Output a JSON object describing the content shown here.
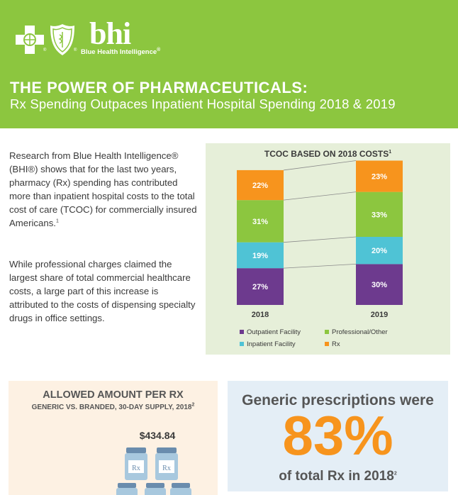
{
  "brand": {
    "logo_text": "bhi",
    "logo_subtitle": "Blue Health Intelligence",
    "registered": "®"
  },
  "header": {
    "title": "THE POWER OF PHARMACEUTICALS:",
    "subtitle": "Rx Spending Outpaces Inpatient Hospital Spending 2018 & 2019"
  },
  "intro": {
    "paragraph1": "Research from Blue Health Intelligence® (BHI®) shows that for the last two years, pharmacy (Rx) spending has contributed more than inpatient hospital costs to the total cost of care (TCOC) for commercially insured Americans.",
    "paragraph1_footnote": "1",
    "paragraph2": "While professional charges claimed the largest share of total commercial healthcare costs, a large part of this increase is attributed to the costs of dispensing specialty drugs in office settings."
  },
  "chart_data": {
    "type": "bar",
    "stacked": true,
    "title": "TCOC BASED ON 2018 COSTS",
    "title_footnote": "1",
    "categories": [
      "2018",
      "2019"
    ],
    "series": [
      {
        "name": "Outpatient Facility",
        "values": [
          27,
          30
        ],
        "labels": [
          "27%",
          "30%"
        ],
        "color": "#6d3a8e"
      },
      {
        "name": "Inpatient Facility",
        "values": [
          19,
          20
        ],
        "labels": [
          "19%",
          "20%"
        ],
        "color": "#4fc3d5"
      },
      {
        "name": "Professional/Other",
        "values": [
          31,
          33
        ],
        "labels": [
          "31%",
          "33%"
        ],
        "color": "#8cc63f"
      },
      {
        "name": "Rx",
        "values": [
          22,
          23
        ],
        "labels": [
          "22%",
          "23%"
        ],
        "color": "#f7941d"
      }
    ],
    "legend_order": [
      "Outpatient Facility",
      "Professional/Other",
      "Inpatient Facility",
      "Rx"
    ],
    "legend_position": "bottom"
  },
  "allowed": {
    "title": "ALLOWED AMOUNT PER RX",
    "subtitle": "GENERIC VS. BRANDED, 30-DAY SUPPLY, 2018",
    "subtitle_footnote": "2",
    "price": "$434.84",
    "bottle_label": "Rx"
  },
  "generic": {
    "line1": "Generic prescriptions were",
    "big": "83%",
    "line2": "of total Rx in 2018",
    "footnote": "2",
    "accent": "#f7941d"
  },
  "colors": {
    "header_green": "#8cc63f",
    "chart_bg": "#e6efd9",
    "allowed_bg": "#fdf1e3",
    "generic_bg": "#e4eef6"
  }
}
